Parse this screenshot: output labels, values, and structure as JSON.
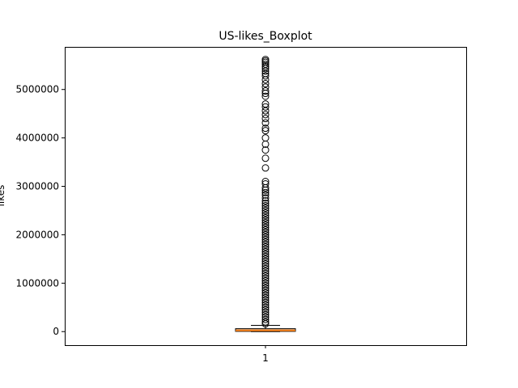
{
  "chart_data": {
    "type": "boxplot",
    "title": "US-likes_Boxplot",
    "xlabel": "",
    "ylabel": "likes",
    "ylim": [
      -280000,
      5880000
    ],
    "y_ticks": [
      0,
      1000000,
      2000000,
      3000000,
      4000000,
      5000000
    ],
    "y_tick_labels": [
      "0",
      "1000000",
      "2000000",
      "3000000",
      "4000000",
      "5000000"
    ],
    "categories": [
      "1"
    ],
    "box": {
      "min": 0,
      "q1": 5000,
      "median": 20000,
      "q3": 60000,
      "whisker_high": 130000,
      "fill_color": "#e8a56b",
      "median_color": "#ff7f0e"
    },
    "outliers": [
      5620000,
      5590000,
      5560000,
      5520000,
      5470000,
      5430000,
      5380000,
      5330000,
      5280000,
      5200000,
      5120000,
      5050000,
      4970000,
      4920000,
      4860000,
      4700000,
      4640000,
      4560000,
      4480000,
      4400000,
      4310000,
      4200000,
      4150000,
      4000000,
      3870000,
      3750000,
      3580000,
      3380000,
      3100000,
      3050000,
      2970000,
      2920000,
      2870000,
      2820000,
      2760000,
      2700000,
      2650000,
      2600000,
      2550000,
      2500000,
      2450000,
      2400000,
      2350000,
      2300000,
      2250000,
      2200000,
      2150000,
      2100000,
      2050000,
      2000000,
      1950000,
      1900000,
      1850000,
      1800000,
      1750000,
      1700000,
      1650000,
      1600000,
      1550000,
      1500000,
      1450000,
      1400000,
      1350000,
      1300000,
      1250000,
      1200000,
      1150000,
      1100000,
      1050000,
      1000000,
      950000,
      900000,
      850000,
      800000,
      750000,
      700000,
      650000,
      600000,
      550000,
      500000,
      450000,
      400000,
      350000,
      300000,
      250000,
      200000,
      160000
    ]
  }
}
